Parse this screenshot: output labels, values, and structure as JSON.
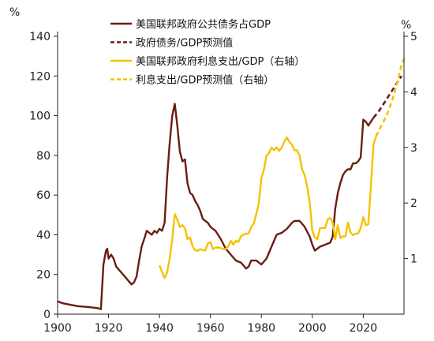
{
  "chart_data": {
    "type": "line",
    "title": "",
    "xlabel": "",
    "ylabel_left": "%",
    "ylabel_right": "%",
    "xlim": [
      1900,
      2036
    ],
    "ylim_left": [
      0,
      140
    ],
    "ylim_right": [
      0,
      5
    ],
    "x_ticks": [
      1900,
      1920,
      1940,
      1960,
      1980,
      2000,
      2020
    ],
    "y_ticks_left": [
      0,
      20,
      40,
      60,
      80,
      100,
      120,
      140
    ],
    "y_ticks_right": [
      1,
      2,
      3,
      4,
      5
    ],
    "grid": false,
    "legend_position": "top",
    "colors": {
      "debt": "#6b1d12",
      "interest": "#f5c200"
    },
    "series": [
      {
        "name": "美国联邦政府公共债务占GDP",
        "axis": "left",
        "style": "solid",
        "color": "#6b1d12",
        "points": [
          [
            1900,
            6.5
          ],
          [
            1902,
            5.5
          ],
          [
            1904,
            5
          ],
          [
            1906,
            4.5
          ],
          [
            1908,
            4
          ],
          [
            1910,
            3.8
          ],
          [
            1912,
            3.6
          ],
          [
            1914,
            3.3
          ],
          [
            1916,
            3
          ],
          [
            1917,
            2.5
          ],
          [
            1918,
            25
          ],
          [
            1919,
            32
          ],
          [
            1919.5,
            33
          ],
          [
            1920,
            28
          ],
          [
            1921,
            30
          ],
          [
            1922,
            28
          ],
          [
            1923,
            24
          ],
          [
            1925,
            21
          ],
          [
            1927,
            18
          ],
          [
            1929,
            15
          ],
          [
            1930,
            16
          ],
          [
            1931,
            19
          ],
          [
            1932,
            27
          ],
          [
            1933,
            34
          ],
          [
            1934,
            38
          ],
          [
            1935,
            42
          ],
          [
            1936,
            41
          ],
          [
            1937,
            40
          ],
          [
            1938,
            42
          ],
          [
            1939,
            41
          ],
          [
            1940,
            43
          ],
          [
            1941,
            42
          ],
          [
            1942,
            46
          ],
          [
            1943,
            69
          ],
          [
            1944,
            86
          ],
          [
            1945,
            100
          ],
          [
            1946,
            106
          ],
          [
            1947,
            95
          ],
          [
            1948,
            82
          ],
          [
            1949,
            77
          ],
          [
            1950,
            78
          ],
          [
            1951,
            66
          ],
          [
            1952,
            61
          ],
          [
            1953,
            60
          ],
          [
            1954,
            57
          ],
          [
            1955,
            55
          ],
          [
            1956,
            52
          ],
          [
            1957,
            48
          ],
          [
            1958,
            47
          ],
          [
            1959,
            46
          ],
          [
            1960,
            44
          ],
          [
            1962,
            42
          ],
          [
            1964,
            38
          ],
          [
            1966,
            33
          ],
          [
            1968,
            30
          ],
          [
            1970,
            27
          ],
          [
            1972,
            26
          ],
          [
            1974,
            23
          ],
          [
            1975,
            24
          ],
          [
            1976,
            27
          ],
          [
            1978,
            27
          ],
          [
            1980,
            25
          ],
          [
            1982,
            28
          ],
          [
            1984,
            34
          ],
          [
            1986,
            40
          ],
          [
            1988,
            41
          ],
          [
            1990,
            43
          ],
          [
            1992,
            46
          ],
          [
            1993,
            47
          ],
          [
            1995,
            47
          ],
          [
            1997,
            44
          ],
          [
            1999,
            39
          ],
          [
            2000,
            35
          ],
          [
            2001,
            32
          ],
          [
            2003,
            34
          ],
          [
            2005,
            35
          ],
          [
            2007,
            36
          ],
          [
            2008,
            39
          ],
          [
            2009,
            53
          ],
          [
            2010,
            61
          ],
          [
            2011,
            66
          ],
          [
            2012,
            70
          ],
          [
            2013,
            72
          ],
          [
            2014,
            73
          ],
          [
            2015,
            73
          ],
          [
            2016,
            76
          ],
          [
            2017,
            76
          ],
          [
            2018,
            77
          ],
          [
            2019,
            79
          ],
          [
            2020,
            98
          ],
          [
            2021,
            97
          ],
          [
            2022,
            95
          ],
          [
            2023,
            97
          ],
          [
            2024,
            99
          ]
        ]
      },
      {
        "name": "政府债务/GDP预测值",
        "axis": "left",
        "style": "dashed",
        "color": "#6b1d12",
        "points": [
          [
            2024,
            99
          ],
          [
            2026,
            102
          ],
          [
            2028,
            106
          ],
          [
            2030,
            110
          ],
          [
            2032,
            114
          ],
          [
            2034,
            118
          ],
          [
            2035,
            120
          ]
        ]
      },
      {
        "name": "美国联邦政府利息支出/GDP（右轴）",
        "axis": "right",
        "style": "solid",
        "color": "#f5c200",
        "points": [
          [
            1940,
            0.88
          ],
          [
            1941,
            0.76
          ],
          [
            1942,
            0.65
          ],
          [
            1943,
            0.75
          ],
          [
            1944,
            1.0
          ],
          [
            1945,
            1.35
          ],
          [
            1946,
            1.8
          ],
          [
            1947,
            1.7
          ],
          [
            1948,
            1.57
          ],
          [
            1949,
            1.6
          ],
          [
            1950,
            1.55
          ],
          [
            1951,
            1.35
          ],
          [
            1952,
            1.38
          ],
          [
            1953,
            1.22
          ],
          [
            1954,
            1.15
          ],
          [
            1955,
            1.14
          ],
          [
            1956,
            1.17
          ],
          [
            1957,
            1.15
          ],
          [
            1958,
            1.15
          ],
          [
            1959,
            1.27
          ],
          [
            1960,
            1.3
          ],
          [
            1961,
            1.17
          ],
          [
            1962,
            1.2
          ],
          [
            1963,
            1.2
          ],
          [
            1964,
            1.19
          ],
          [
            1965,
            1.17
          ],
          [
            1966,
            1.17
          ],
          [
            1967,
            1.22
          ],
          [
            1968,
            1.32
          ],
          [
            1969,
            1.25
          ],
          [
            1970,
            1.32
          ],
          [
            1971,
            1.3
          ],
          [
            1972,
            1.4
          ],
          [
            1973,
            1.43
          ],
          [
            1974,
            1.45
          ],
          [
            1975,
            1.45
          ],
          [
            1976,
            1.57
          ],
          [
            1977,
            1.63
          ],
          [
            1978,
            1.8
          ],
          [
            1979,
            2.0
          ],
          [
            1980,
            2.45
          ],
          [
            1981,
            2.6
          ],
          [
            1982,
            2.85
          ],
          [
            1983,
            2.9
          ],
          [
            1984,
            3.0
          ],
          [
            1985,
            2.95
          ],
          [
            1986,
            3.0
          ],
          [
            1987,
            2.94
          ],
          [
            1988,
            3.0
          ],
          [
            1989,
            3.1
          ],
          [
            1990,
            3.18
          ],
          [
            1991,
            3.1
          ],
          [
            1992,
            3.05
          ],
          [
            1993,
            2.95
          ],
          [
            1994,
            2.95
          ],
          [
            1995,
            2.85
          ],
          [
            1996,
            2.6
          ],
          [
            1997,
            2.5
          ],
          [
            1998,
            2.3
          ],
          [
            1999,
            2.0
          ],
          [
            2000,
            1.5
          ],
          [
            2001,
            1.38
          ],
          [
            2002,
            1.35
          ],
          [
            2003,
            1.55
          ],
          [
            2004,
            1.55
          ],
          [
            2005,
            1.55
          ],
          [
            2006,
            1.7
          ],
          [
            2007,
            1.73
          ],
          [
            2008,
            1.65
          ],
          [
            2009,
            1.35
          ],
          [
            2010,
            1.6
          ],
          [
            2011,
            1.37
          ],
          [
            2012,
            1.4
          ],
          [
            2013,
            1.4
          ],
          [
            2014,
            1.65
          ],
          [
            2015,
            1.47
          ],
          [
            2016,
            1.42
          ],
          [
            2017,
            1.45
          ],
          [
            2018,
            1.45
          ],
          [
            2019,
            1.55
          ],
          [
            2020,
            1.75
          ],
          [
            2021,
            1.6
          ],
          [
            2022,
            1.62
          ],
          [
            2023,
            2.3
          ],
          [
            2024,
            3.05
          ],
          [
            2025,
            3.2
          ]
        ]
      },
      {
        "name": "利息支出/GDP预测值（右轴）",
        "axis": "right",
        "style": "dashed",
        "color": "#f5c200",
        "points": [
          [
            2025,
            3.2
          ],
          [
            2027,
            3.38
          ],
          [
            2029,
            3.56
          ],
          [
            2031,
            3.8
          ],
          [
            2033,
            4.1
          ],
          [
            2035,
            4.48
          ],
          [
            2036,
            4.6
          ]
        ]
      }
    ]
  }
}
